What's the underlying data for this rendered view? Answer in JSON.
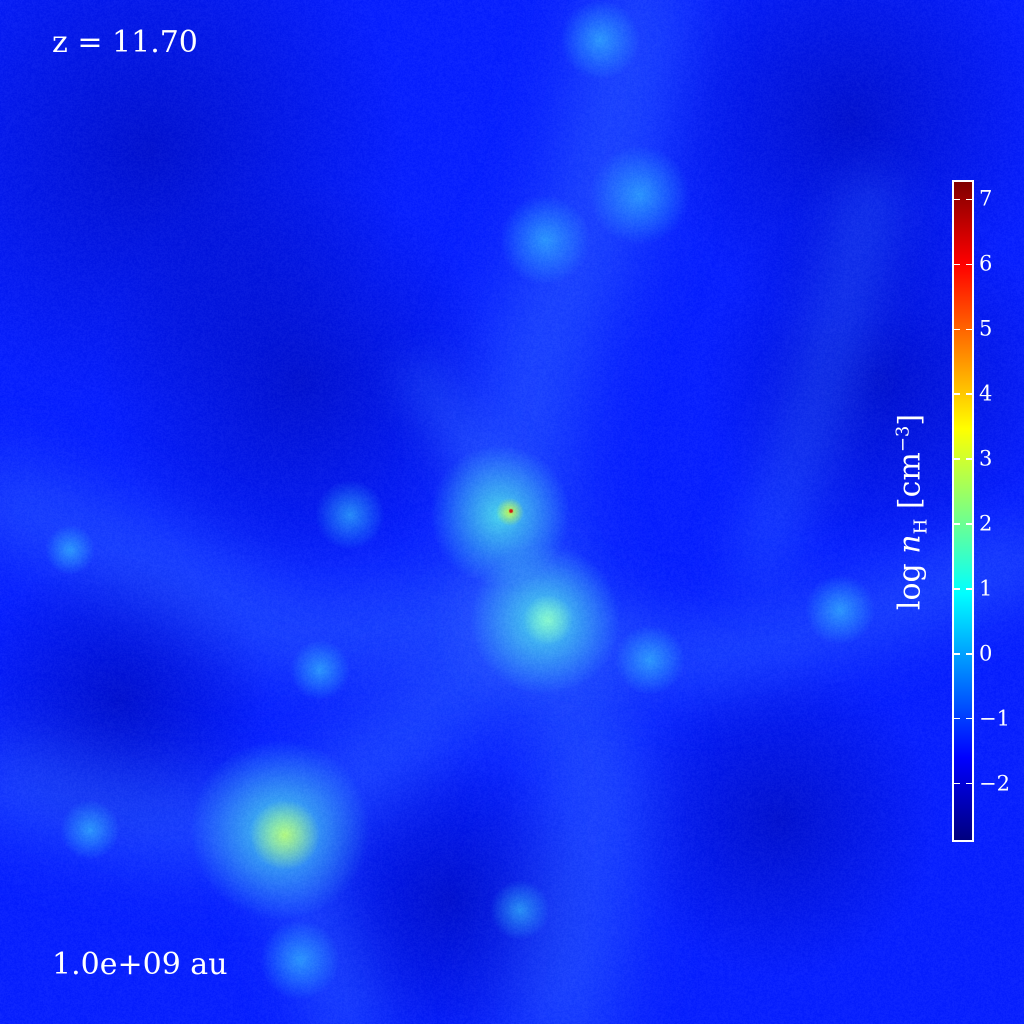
{
  "redshift_label": "z = 11.70",
  "scale_label": "1.0e+09 au",
  "colorbar": {
    "label_prefix": "log ",
    "label_var": "n",
    "label_sub": "H",
    "label_unit": " [cm",
    "label_sup": "−3",
    "label_close": "]",
    "min": -2.9,
    "max": 7.3,
    "ticks": [
      "−2",
      "−1",
      "0",
      "1",
      "2",
      "3",
      "4",
      "5",
      "6",
      "7"
    ],
    "tick_values": [
      -2,
      -1,
      0,
      1,
      2,
      3,
      4,
      5,
      6,
      7
    ],
    "colormap": "jet",
    "colors": [
      "#00007f",
      "#0000ff",
      "#007fff",
      "#00ffff",
      "#7fff7f",
      "#ffff00",
      "#ff7f00",
      "#ff0000",
      "#7f0000"
    ]
  },
  "background_color": "#0a22ff"
}
